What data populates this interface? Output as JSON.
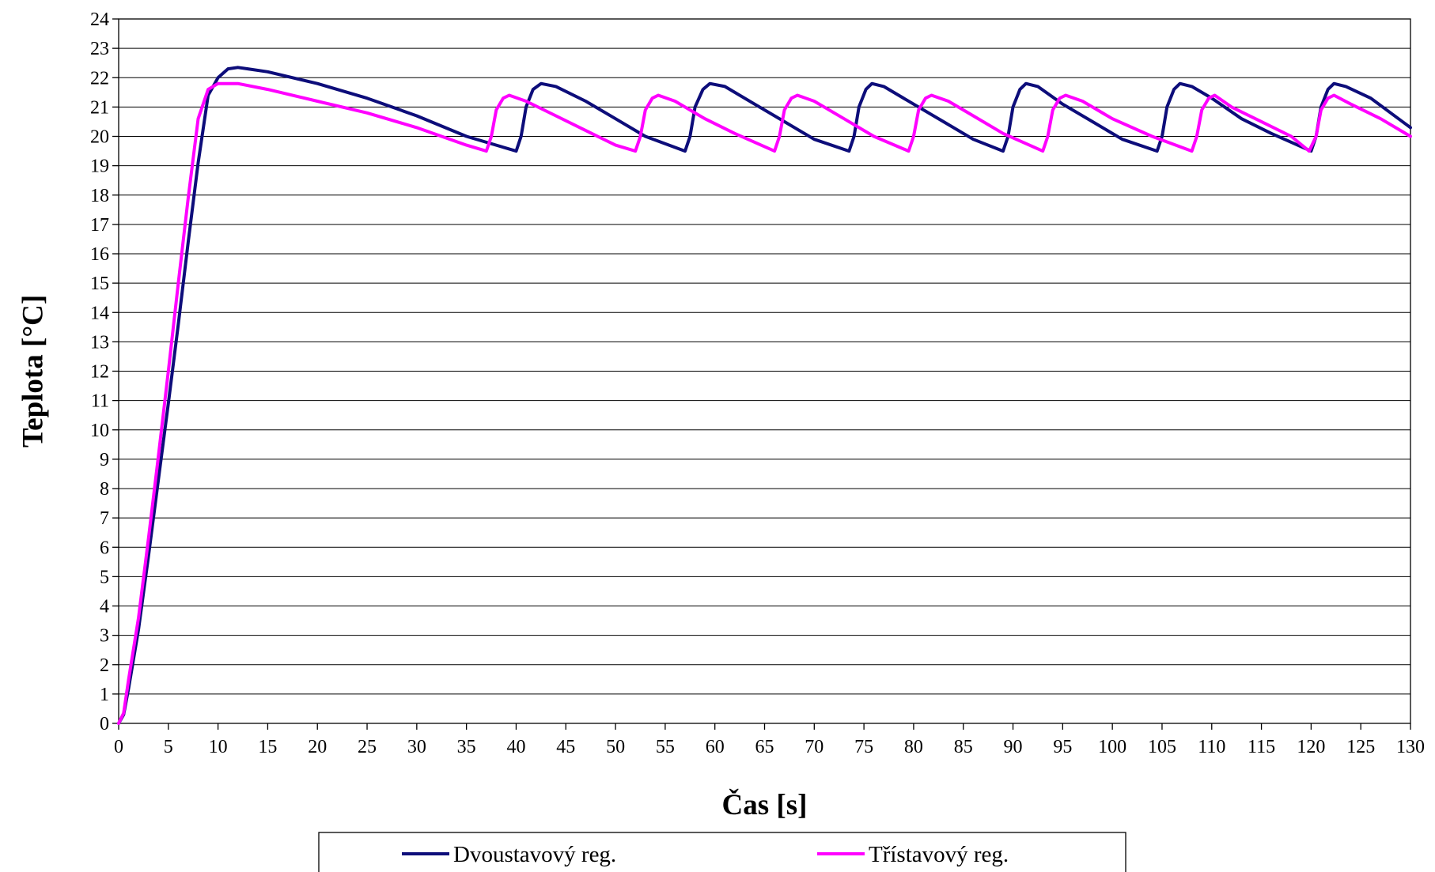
{
  "chart_data": {
    "type": "line",
    "title": "",
    "xlabel": "Čas [s]",
    "ylabel": "Teplota [°C]",
    "xlim": [
      0,
      130
    ],
    "ylim": [
      0,
      24
    ],
    "x_ticks": [
      0,
      5,
      10,
      15,
      20,
      25,
      30,
      35,
      40,
      45,
      50,
      55,
      60,
      65,
      70,
      75,
      80,
      85,
      90,
      95,
      100,
      105,
      110,
      115,
      120,
      125,
      130
    ],
    "y_ticks": [
      0,
      1,
      2,
      3,
      4,
      5,
      6,
      7,
      8,
      9,
      10,
      11,
      12,
      13,
      14,
      15,
      16,
      17,
      18,
      19,
      20,
      21,
      22,
      23,
      24
    ],
    "grid": "horizontal",
    "legend_position": "bottom",
    "series": [
      {
        "name": "Dvoustavový reg.",
        "color": "#0d0d7a",
        "points": [
          [
            0,
            0
          ],
          [
            0.5,
            0.3
          ],
          [
            1,
            1.2
          ],
          [
            2,
            3.2
          ],
          [
            3,
            5.7
          ],
          [
            4,
            8.3
          ],
          [
            5,
            10.9
          ],
          [
            6,
            13.6
          ],
          [
            7,
            16.4
          ],
          [
            8,
            19.1
          ],
          [
            9,
            21.4
          ],
          [
            10,
            22.0
          ],
          [
            11,
            22.3
          ],
          [
            12,
            22.35
          ],
          [
            13,
            22.3
          ],
          [
            15,
            22.2
          ],
          [
            20,
            21.8
          ],
          [
            25,
            21.3
          ],
          [
            30,
            20.7
          ],
          [
            35,
            20.0
          ],
          [
            40,
            19.5
          ],
          [
            40.5,
            20.0
          ],
          [
            41,
            21.0
          ],
          [
            41.7,
            21.6
          ],
          [
            42.5,
            21.8
          ],
          [
            44,
            21.7
          ],
          [
            47,
            21.2
          ],
          [
            50,
            20.6
          ],
          [
            53,
            20.0
          ],
          [
            57,
            19.5
          ],
          [
            57.5,
            20.0
          ],
          [
            58,
            21.0
          ],
          [
            58.8,
            21.6
          ],
          [
            59.5,
            21.8
          ],
          [
            61,
            21.7
          ],
          [
            64,
            21.1
          ],
          [
            67,
            20.5
          ],
          [
            70,
            19.9
          ],
          [
            73.5,
            19.5
          ],
          [
            74,
            20.0
          ],
          [
            74.5,
            21.0
          ],
          [
            75.2,
            21.6
          ],
          [
            75.8,
            21.8
          ],
          [
            77,
            21.7
          ],
          [
            80,
            21.1
          ],
          [
            83,
            20.5
          ],
          [
            86,
            19.9
          ],
          [
            89,
            19.5
          ],
          [
            89.5,
            20.0
          ],
          [
            90,
            21.0
          ],
          [
            90.7,
            21.6
          ],
          [
            91.3,
            21.8
          ],
          [
            92.5,
            21.7
          ],
          [
            95,
            21.1
          ],
          [
            98,
            20.5
          ],
          [
            101,
            19.9
          ],
          [
            104.5,
            19.5
          ],
          [
            105,
            20.0
          ],
          [
            105.5,
            21.0
          ],
          [
            106.2,
            21.6
          ],
          [
            106.8,
            21.8
          ],
          [
            108,
            21.7
          ],
          [
            110,
            21.3
          ],
          [
            113,
            20.6
          ],
          [
            116,
            20.1
          ],
          [
            120,
            19.5
          ],
          [
            120.5,
            20.0
          ],
          [
            121,
            21.0
          ],
          [
            121.7,
            21.6
          ],
          [
            122.3,
            21.8
          ],
          [
            123.5,
            21.7
          ],
          [
            126,
            21.3
          ],
          [
            128,
            20.8
          ],
          [
            130,
            20.3
          ]
        ]
      },
      {
        "name": "Třístavový reg.",
        "color": "#ff00ff",
        "points": [
          [
            0,
            0
          ],
          [
            0.5,
            0.35
          ],
          [
            1,
            1.5
          ],
          [
            2,
            3.6
          ],
          [
            3,
            6.3
          ],
          [
            4,
            9.1
          ],
          [
            5,
            12.0
          ],
          [
            6,
            15.0
          ],
          [
            7,
            17.9
          ],
          [
            8,
            20.6
          ],
          [
            9,
            21.6
          ],
          [
            10,
            21.8
          ],
          [
            11,
            21.8
          ],
          [
            12,
            21.8
          ],
          [
            15,
            21.6
          ],
          [
            20,
            21.2
          ],
          [
            25,
            20.8
          ],
          [
            30,
            20.3
          ],
          [
            35,
            19.7
          ],
          [
            37,
            19.5
          ],
          [
            37.5,
            20.0
          ],
          [
            38,
            20.9
          ],
          [
            38.7,
            21.3
          ],
          [
            39.3,
            21.4
          ],
          [
            41,
            21.2
          ],
          [
            44,
            20.7
          ],
          [
            47,
            20.2
          ],
          [
            50,
            19.7
          ],
          [
            52,
            19.5
          ],
          [
            52.5,
            20.0
          ],
          [
            53,
            20.9
          ],
          [
            53.7,
            21.3
          ],
          [
            54.3,
            21.4
          ],
          [
            56,
            21.2
          ],
          [
            59,
            20.6
          ],
          [
            62,
            20.1
          ],
          [
            66,
            19.5
          ],
          [
            66.5,
            20.0
          ],
          [
            67,
            20.9
          ],
          [
            67.7,
            21.3
          ],
          [
            68.3,
            21.4
          ],
          [
            70,
            21.2
          ],
          [
            73,
            20.6
          ],
          [
            76,
            20.0
          ],
          [
            79.5,
            19.5
          ],
          [
            80,
            20.0
          ],
          [
            80.5,
            20.9
          ],
          [
            81.2,
            21.3
          ],
          [
            81.8,
            21.4
          ],
          [
            83.5,
            21.2
          ],
          [
            86,
            20.7
          ],
          [
            89,
            20.1
          ],
          [
            93,
            19.5
          ],
          [
            93.5,
            20.0
          ],
          [
            94,
            20.9
          ],
          [
            94.7,
            21.3
          ],
          [
            95.3,
            21.4
          ],
          [
            97,
            21.2
          ],
          [
            100,
            20.6
          ],
          [
            104,
            20.0
          ],
          [
            108,
            19.5
          ],
          [
            108.5,
            20.0
          ],
          [
            109,
            20.9
          ],
          [
            109.7,
            21.3
          ],
          [
            110.3,
            21.4
          ],
          [
            112,
            21.0
          ],
          [
            115,
            20.5
          ],
          [
            118,
            20.0
          ],
          [
            119.8,
            19.5
          ],
          [
            120.5,
            20.0
          ],
          [
            121,
            20.9
          ],
          [
            121.7,
            21.3
          ],
          [
            122.3,
            21.4
          ],
          [
            124,
            21.1
          ],
          [
            127,
            20.6
          ],
          [
            130,
            20.0
          ]
        ]
      }
    ]
  }
}
